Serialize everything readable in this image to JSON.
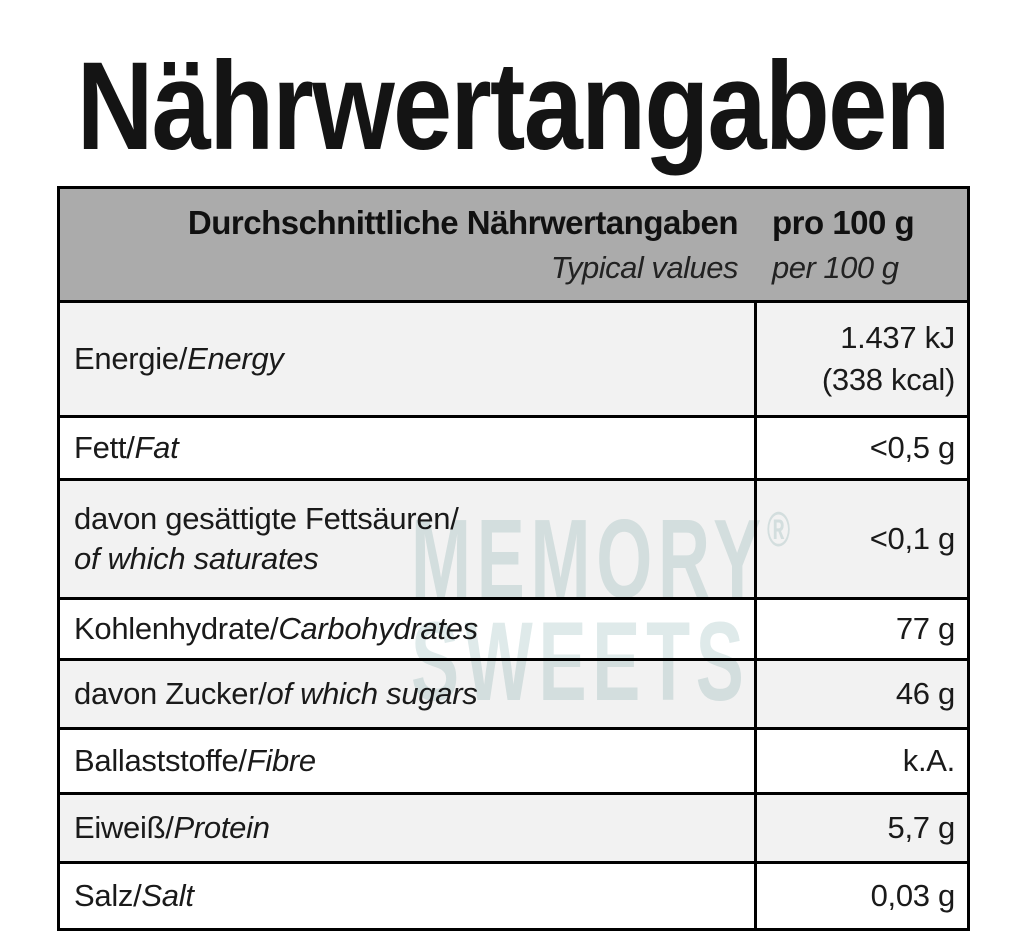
{
  "page": {
    "title": "Nährwertangaben"
  },
  "table": {
    "header": {
      "title_de": "Durchschnittliche Nährwertangaben",
      "title_en": "Typical values",
      "unit_de": "pro 100 g",
      "unit_en": "per 100 g"
    },
    "rows": [
      {
        "label_de": "Energie/",
        "label_en": "Energy",
        "value": "1.437 kJ",
        "value2": "(338 kcal)"
      },
      {
        "label_de": "Fett/",
        "label_en": "Fat",
        "value": "<0,5 g"
      },
      {
        "label_de": "davon gesättigte Fettsäuren/",
        "label_en": "of which saturates",
        "value": "<0,1 g"
      },
      {
        "label_de": "Kohlenhydrate/",
        "label_en": "Carbohydrates",
        "value": "77 g"
      },
      {
        "label_de": "davon Zucker/",
        "label_en": "of which sugars",
        "value": "46 g"
      },
      {
        "label_de": "Ballaststoffe/",
        "label_en": "Fibre",
        "value": "k.A."
      },
      {
        "label_de": "Eiweiß/",
        "label_en": "Protein",
        "value": "5,7 g"
      },
      {
        "label_de": "Salz/",
        "label_en": "Salt",
        "value": "0,03 g"
      }
    ]
  },
  "watermark": {
    "line1": "MEMORY",
    "reg": "®",
    "line2": "SWEETS"
  },
  "colors": {
    "header_bg": "#ababab",
    "row_shade": "#f2f2f2",
    "row_white": "#ffffff",
    "border": "#000000",
    "watermark": "#dfeaea"
  }
}
